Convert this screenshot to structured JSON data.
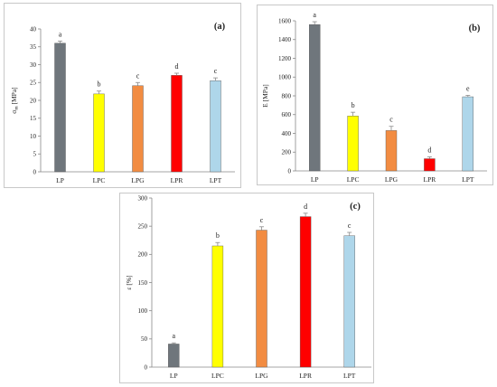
{
  "panels": [
    {
      "label": "(a)",
      "ylabel_main": "σ",
      "ylabel_sub": "m",
      "ylabel_rest": " [MPa]",
      "categories": [
        "LP",
        "LPC",
        "LPG",
        "LPR",
        "LPT"
      ]
    },
    {
      "label": "(b)",
      "ylabel_main": "E [MPa]",
      "ylabel_sub": "",
      "ylabel_rest": "",
      "categories": [
        "LP",
        "LPC",
        "LPG",
        "LPR",
        "LPT"
      ]
    },
    {
      "label": "(c)",
      "ylabel_main": "ε [%]",
      "ylabel_sub": "",
      "ylabel_rest": "",
      "categories": [
        "LP",
        "LPC",
        "LPG",
        "LPR",
        "LPT"
      ]
    }
  ],
  "colors": {
    "LP": "#6f767c",
    "LPC": "#ffff00",
    "LPG": "#f28c42",
    "LPR": "#ff0000",
    "LPT": "#aed6ea",
    "error_bar": "#8a8a8a",
    "axis": "#888888"
  },
  "chart_data": [
    {
      "type": "bar",
      "title": "(a)",
      "xlabel": "",
      "ylabel": "σm [MPa]",
      "categories": [
        "LP",
        "LPC",
        "LPG",
        "LPR",
        "LPT"
      ],
      "values": [
        36,
        21.8,
        24.1,
        27,
        25.5
      ],
      "errors": [
        0.6,
        0.8,
        0.9,
        0.6,
        0.8
      ],
      "significance": [
        "a",
        "b",
        "c",
        "d",
        "c"
      ],
      "ylim": [
        0,
        40
      ],
      "yticks": [
        0,
        5,
        10,
        15,
        20,
        25,
        30,
        35,
        40
      ],
      "grid": false
    },
    {
      "type": "bar",
      "title": "(b)",
      "xlabel": "",
      "ylabel": "E [MPa]",
      "categories": [
        "LP",
        "LPC",
        "LPG",
        "LPR",
        "LPT"
      ],
      "values": [
        1560,
        585,
        430,
        130,
        790
      ],
      "errors": [
        30,
        40,
        45,
        20,
        15
      ],
      "significance": [
        "a",
        "b",
        "c",
        "d",
        "e"
      ],
      "ylim": [
        0,
        1600
      ],
      "yticks": [
        0,
        200,
        400,
        600,
        800,
        1000,
        1200,
        1400,
        1600
      ],
      "grid": false
    },
    {
      "type": "bar",
      "title": "(c)",
      "xlabel": "",
      "ylabel": "ε [%]",
      "categories": [
        "LP",
        "LPC",
        "LPG",
        "LPR",
        "LPT"
      ],
      "values": [
        41,
        215,
        243,
        267,
        233
      ],
      "errors": [
        2,
        6,
        6,
        6,
        6
      ],
      "significance": [
        "a",
        "b",
        "c",
        "d",
        "c"
      ],
      "ylim": [
        0,
        300
      ],
      "yticks": [
        0,
        50,
        100,
        150,
        200,
        250,
        300
      ],
      "grid": false
    }
  ]
}
